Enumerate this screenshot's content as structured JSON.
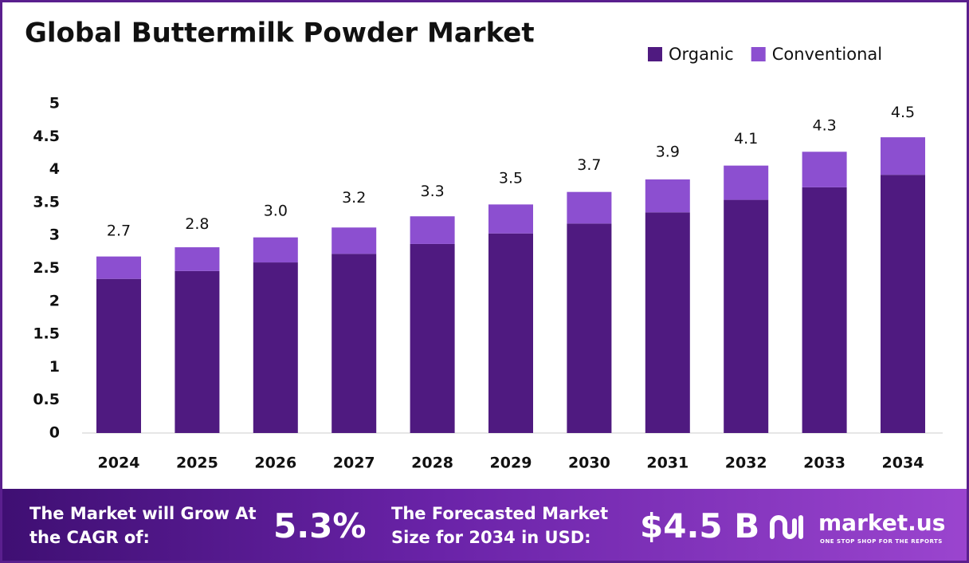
{
  "chart_data": {
    "type": "stacked-bar",
    "title": "Global Buttermilk Powder Market",
    "categories": [
      "2024",
      "2025",
      "2026",
      "2027",
      "2028",
      "2029",
      "2030",
      "2031",
      "2032",
      "2033",
      "2034"
    ],
    "series": [
      {
        "name": "Organic",
        "color": "#4f1a80",
        "values": [
          2.34,
          2.46,
          2.59,
          2.72,
          2.87,
          3.03,
          3.18,
          3.35,
          3.54,
          3.73,
          3.92
        ]
      },
      {
        "name": "Conventional",
        "color": "#8c4fd0",
        "values": [
          0.34,
          0.36,
          0.38,
          0.4,
          0.42,
          0.44,
          0.48,
          0.5,
          0.52,
          0.54,
          0.57
        ]
      }
    ],
    "totals": [
      2.7,
      2.8,
      3.0,
      3.2,
      3.3,
      3.5,
      3.7,
      3.9,
      4.1,
      4.3,
      4.5
    ],
    "total_labels": [
      "2.7",
      "2.8",
      "3.0",
      "3.2",
      "3.3",
      "3.5",
      "3.7",
      "3.9",
      "4.1",
      "4.3",
      "4.5"
    ],
    "ylim": [
      0,
      5
    ],
    "yticks": [
      0,
      0.5,
      1,
      1.5,
      2,
      2.5,
      3,
      3.5,
      4,
      4.5,
      5
    ],
    "legend": "top-right"
  },
  "footer": {
    "cagr_label": "The Market will Grow At the CAGR of:",
    "cagr_value": "5.3%",
    "forecast_label": "The Forecasted Market Size for 2034 in USD:",
    "forecast_value": "$4.5 B",
    "logo": "market.us",
    "tagline": "ONE STOP SHOP FOR THE REPORTS"
  }
}
